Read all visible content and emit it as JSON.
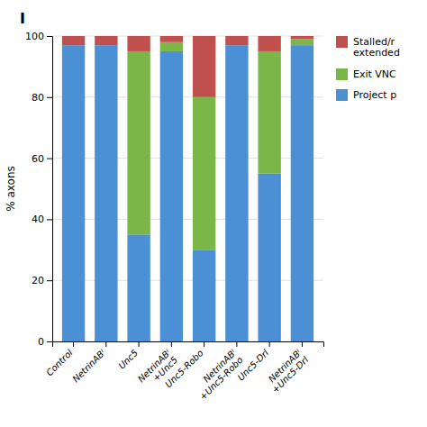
{
  "chart_data": {
    "type": "bar",
    "stacked": true,
    "title": "I",
    "y_label": "% axons",
    "categories": [
      "Control",
      "NetrinABᴵ",
      "Unc5",
      "NetrinABᴵ\n+Unc5",
      "Unc5-Robo",
      "NetrinABᴵ\n+Unc5-Robo",
      "Unc5-Drl",
      "NetrinABᴵ\n+Unc5-Drl"
    ],
    "series": [
      {
        "name": "Project p",
        "color": "#4B8FD4",
        "values": [
          97,
          97,
          35,
          95,
          30,
          97,
          55,
          97
        ]
      },
      {
        "name": "Exit VNC",
        "color": "#7AB648",
        "values": [
          0,
          0,
          60,
          3,
          50,
          0,
          40,
          2
        ]
      },
      {
        "name": "Stalled/r\nextended",
        "color": "#C0504D",
        "values": [
          3,
          3,
          5,
          2,
          20,
          3,
          5,
          1
        ]
      }
    ],
    "ylim": [
      0,
      100
    ],
    "yticks": [
      0,
      20,
      40,
      60,
      80,
      100
    ],
    "grid": true,
    "legend": "upper right"
  }
}
